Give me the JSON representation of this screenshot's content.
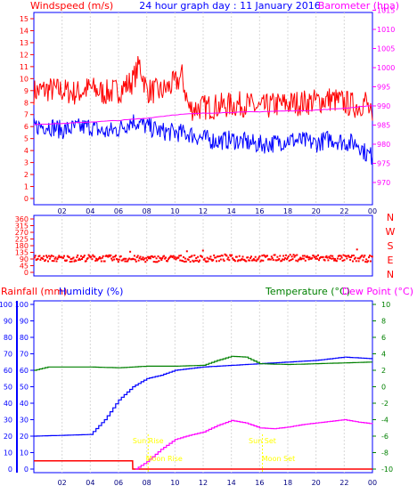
{
  "header": {
    "left_label": "Windspeed (m/s)",
    "title": "24 hour graph day : 11 January 2016",
    "right_label": "Barometer (hpa)"
  },
  "bottom_header": {
    "rain_label": "Rainfall (mm)",
    "hum_label": "Humidity (%)",
    "temp_label": "Temperature (°C)",
    "dew_label": "Dew Point (°C)"
  },
  "colors": {
    "wind": "#ff0000",
    "gust": "#ff0000",
    "avgwind": "#0000ff",
    "baro": "#ff00ff",
    "dir": "#ff0000",
    "rain": "#ff0000",
    "humidity": "#0000ff",
    "temperature": "#008000",
    "dewpoint": "#ff00ff",
    "event": "#ffff00"
  },
  "events": {
    "sunrise": "Sun Rise",
    "moonrise": "Moon Rise",
    "sunset": "Sun Set",
    "moonset": "Moon Set"
  },
  "chart_data": [
    {
      "type": "line",
      "title": "24 hour graph day : 11 January 2016",
      "ylabel": "Windspeed (m/s)",
      "y2label": "Barometer (hpa)",
      "ylim": [
        0,
        15
      ],
      "y2lim": [
        970,
        1015
      ],
      "x_ticks": [
        "02",
        "04",
        "06",
        "08",
        "10",
        "12",
        "14",
        "16",
        "18",
        "20",
        "22",
        "00"
      ],
      "y_ticks": [
        0,
        1,
        2,
        3,
        4,
        5,
        6,
        7,
        8,
        9,
        10,
        11,
        12,
        13,
        14,
        15
      ],
      "y2_ticks": [
        970,
        975,
        980,
        985,
        990,
        995,
        1000,
        1005,
        1010,
        1015
      ],
      "series": [
        {
          "axis": "left",
          "x": [
            0,
            1,
            2,
            3,
            4,
            5,
            6,
            7,
            7.5,
            8,
            9,
            10,
            10.5,
            11,
            12,
            13,
            14,
            15,
            16,
            17,
            18,
            19,
            20,
            21,
            22,
            23,
            23.5,
            24
          ],
          "values": [
            8.9,
            9.1,
            9.0,
            8.8,
            9.2,
            8.8,
            9.0,
            9.8,
            11.2,
            9.0,
            8.9,
            9.6,
            10.2,
            7.5,
            7.6,
            7.7,
            7.8,
            7.9,
            7.5,
            7.8,
            7.9,
            8.0,
            8.1,
            8.3,
            8.0,
            7.7,
            8.2,
            6.5
          ]
        },
        {
          "axis": "left",
          "x": [
            0,
            1,
            2,
            3,
            4,
            5,
            6,
            7,
            8,
            9,
            10,
            11,
            12,
            13,
            14,
            15,
            16,
            17,
            18,
            19,
            20,
            21,
            22,
            23,
            23.5,
            24
          ],
          "values": [
            6.0,
            6.1,
            5.7,
            5.9,
            6.0,
            5.5,
            5.8,
            6.5,
            6.0,
            5.6,
            5.5,
            5.4,
            5.0,
            4.8,
            4.9,
            4.7,
            4.5,
            4.6,
            4.9,
            4.8,
            4.6,
            5.0,
            4.7,
            4.6,
            3.8,
            3.5
          ]
        },
        {
          "axis": "right",
          "x": [
            0,
            2,
            4,
            6,
            8,
            10,
            12,
            14,
            16,
            18,
            20,
            22,
            24
          ],
          "values": [
            985.2,
            985.4,
            985.8,
            986.2,
            986.8,
            987.7,
            988.1,
            988.3,
            988.5,
            988.7,
            988.9,
            989.4,
            990.1
          ]
        }
      ]
    },
    {
      "type": "scatter",
      "title": "",
      "ylabel": "",
      "ylim": [
        0,
        360
      ],
      "y_ticks": [
        0,
        45,
        90,
        135,
        180,
        225,
        270,
        315,
        360
      ],
      "y2_ticks": [
        "N",
        "W",
        "S",
        "E",
        "N"
      ],
      "series": [
        {
          "x": [
            0,
            2,
            4,
            6,
            8,
            10,
            12,
            14,
            16,
            18,
            20,
            22,
            23.5
          ],
          "values": [
            95,
            93,
            97,
            92,
            90,
            94,
            92,
            96,
            95,
            98,
            97,
            95,
            92
          ]
        }
      ]
    },
    {
      "type": "line",
      "title": "",
      "ylabel": "Rainfall (mm)",
      "y2label": "Temperature (°C)",
      "ylim": [
        0,
        100
      ],
      "y2lim": [
        -10,
        10
      ],
      "y_ticks": [
        0,
        10,
        20,
        30,
        40,
        50,
        60,
        70,
        80,
        90,
        100
      ],
      "y2_ticks": [
        -10,
        -8,
        -6,
        -4,
        -2,
        0,
        2,
        4,
        6,
        8,
        10
      ],
      "series": [
        {
          "axis": "left",
          "x": [
            0,
            7,
            7.01,
            24
          ],
          "values": [
            5,
            5,
            0,
            0
          ]
        },
        {
          "axis": "left",
          "x": [
            0,
            4,
            5,
            6,
            7,
            8,
            9,
            10,
            11,
            12,
            14,
            16,
            18,
            20,
            22,
            24
          ],
          "values": [
            20,
            21,
            30,
            42,
            50,
            55,
            57,
            60,
            61,
            62,
            63,
            64,
            65,
            66,
            68,
            67
          ]
        },
        {
          "axis": "right",
          "x": [
            0,
            1,
            2,
            4,
            6,
            8,
            10,
            12,
            13,
            14,
            15,
            16,
            18,
            20,
            22,
            24
          ],
          "values": [
            2.0,
            2.4,
            2.4,
            2.4,
            2.3,
            2.5,
            2.5,
            2.6,
            3.2,
            3.7,
            3.6,
            2.8,
            2.7,
            2.8,
            2.9,
            3.0
          ]
        },
        {
          "axis": "right",
          "x": [
            7.2,
            8,
            9,
            10,
            11,
            12,
            13,
            14,
            15,
            16,
            17,
            18,
            19,
            20,
            21,
            22,
            23,
            24
          ],
          "values": [
            -10,
            -9.1,
            -7.6,
            -6.4,
            -5.9,
            -5.5,
            -4.7,
            -4.1,
            -4.4,
            -5.0,
            -5.1,
            -4.9,
            -4.6,
            -4.4,
            -4.2,
            -4.0,
            -4.3,
            -4.5
          ]
        }
      ]
    }
  ]
}
